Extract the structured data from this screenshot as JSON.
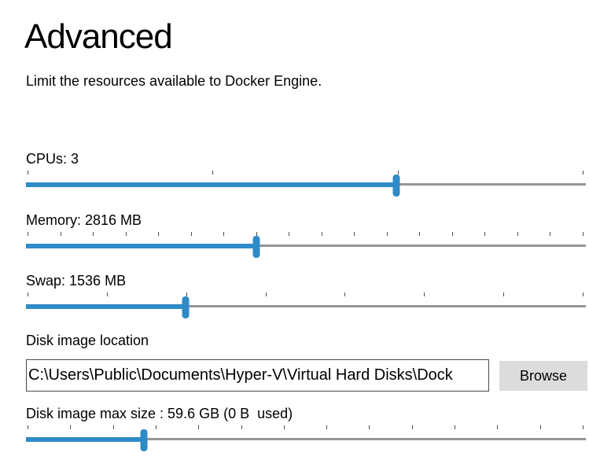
{
  "page": {
    "title": "Advanced",
    "subtitle": "Limit the resources available to Docker Engine."
  },
  "sliders": {
    "cpus": {
      "label": "CPUs: 3",
      "value": 3,
      "ticks": 4,
      "fraction": 0.662
    },
    "memory": {
      "label": "Memory: 2816 MB",
      "value": "2816 MB",
      "ticks": 18,
      "fraction": 0.411
    },
    "swap": {
      "label": "Swap: 1536 MB",
      "value": "1536 MB",
      "ticks": 8,
      "fraction": 0.285
    },
    "disk_size": {
      "label": "Disk image max size : 59.6 GB (0 B  used)",
      "value": "59.6 GB",
      "used": "0 B",
      "ticks": 14,
      "fraction": 0.211
    }
  },
  "disk_location": {
    "label": "Disk image location",
    "value": "C:\\Users\\Public\\Documents\\Hyper-V\\Virtual Hard Disks\\Dock",
    "browse_label": "Browse"
  },
  "colors": {
    "accent": "#2e8bc8",
    "track": "#959595",
    "tick": "#4c4c4c",
    "button_bg": "#dcdcdc"
  }
}
